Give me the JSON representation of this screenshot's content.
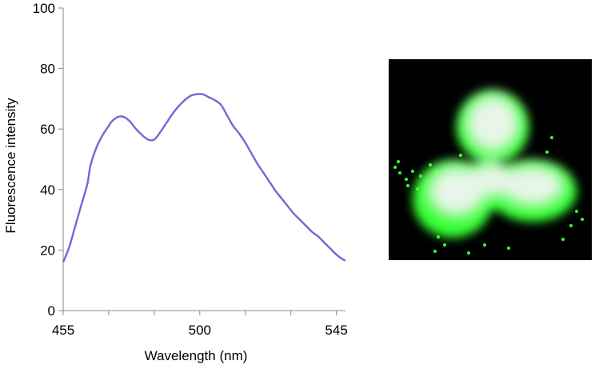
{
  "chart_data": {
    "type": "line",
    "title": "",
    "xlabel": "Wavelength (nm)",
    "ylabel": "Fluorescence intensity",
    "xlim": [
      455,
      548
    ],
    "ylim": [
      0,
      100
    ],
    "x_ticks": [
      455,
      500,
      545
    ],
    "y_ticks": [
      0,
      20,
      40,
      60,
      80,
      100
    ],
    "grid": false,
    "legend": "none",
    "series": [
      {
        "color": "#7b62d8",
        "x": [
          455,
          457,
          459,
          461,
          463,
          464,
          466,
          468,
          470,
          471,
          473,
          475,
          477,
          479,
          481,
          483,
          485,
          487,
          489,
          491,
          493,
          495,
          497,
          499,
          501,
          503,
          505,
          507,
          509,
          511,
          513,
          515,
          517,
          519,
          521,
          523,
          525,
          527,
          529,
          531,
          533,
          535,
          537,
          539,
          541,
          543,
          545,
          547,
          548
        ],
        "y": [
          16,
          21,
          28,
          35,
          42,
          48,
          54,
          58,
          61,
          62.5,
          64,
          64,
          62.5,
          60,
          58,
          56.5,
          56.5,
          59,
          62,
          65,
          67.5,
          69.5,
          71,
          71.5,
          71.5,
          70.5,
          69.5,
          68,
          64.5,
          61,
          58.5,
          55.5,
          52,
          48.5,
          45.5,
          42.5,
          39.5,
          37,
          34.5,
          32,
          30,
          28,
          26,
          24.5,
          22.5,
          20.5,
          18.5,
          17,
          16.5
        ]
      }
    ]
  },
  "photo": {
    "background": "#000000",
    "glow_color": "#33ff33",
    "core_color": "#e8f5e8"
  }
}
